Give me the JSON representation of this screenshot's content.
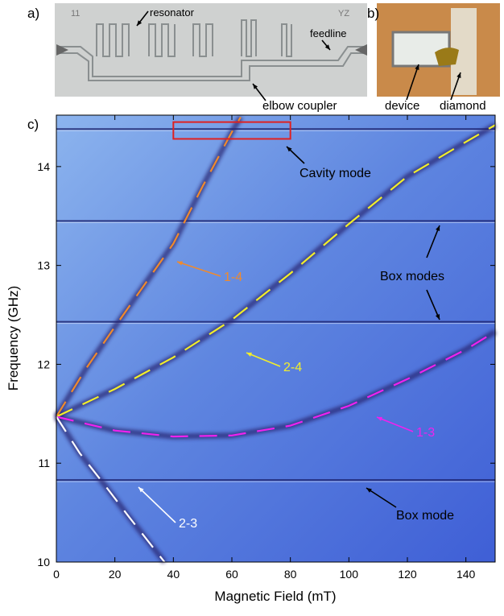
{
  "panels": {
    "a": {
      "label": "a)",
      "chip_markings": [
        "11",
        "YZ"
      ],
      "annotations": [
        "resonator",
        "feedline",
        "elbow coupler"
      ]
    },
    "b": {
      "label": "b)",
      "annotations": [
        "device",
        "diamond"
      ]
    }
  },
  "chart_data": {
    "type": "line",
    "panel_label": "c)",
    "x_label": "Magnetic Field (mT)",
    "y_label": "Frequency (GHz)",
    "xlim": [
      0,
      150
    ],
    "ylim": [
      10,
      14.52
    ],
    "xticks": [
      0,
      20,
      40,
      60,
      80,
      100,
      120,
      140
    ],
    "yticks": [
      10,
      11,
      12,
      13,
      14
    ],
    "series": [
      {
        "name": "1-4",
        "color": "#f08a2c",
        "x": [
          0,
          10,
          20,
          30,
          40,
          50,
          60,
          63
        ],
        "values": [
          11.47,
          11.95,
          12.38,
          12.8,
          13.22,
          13.8,
          14.35,
          14.5
        ]
      },
      {
        "name": "2-4",
        "color": "#f2ee2a",
        "x": [
          0,
          20,
          40,
          60,
          80,
          100,
          120,
          140,
          150
        ],
        "values": [
          11.47,
          11.75,
          12.07,
          12.45,
          12.92,
          13.42,
          13.9,
          14.25,
          14.42
        ]
      },
      {
        "name": "1-3",
        "color": "#ee22ee",
        "x": [
          0,
          20,
          40,
          60,
          80,
          100,
          120,
          140,
          150
        ],
        "values": [
          11.47,
          11.33,
          11.27,
          11.28,
          11.38,
          11.58,
          11.85,
          12.15,
          12.33
        ]
      },
      {
        "name": "2-3",
        "color": "#ffffff",
        "x": [
          0,
          8,
          16,
          25,
          37
        ],
        "values": [
          11.47,
          11.1,
          10.8,
          10.45,
          10.0
        ]
      }
    ],
    "modes": [
      14.38,
      13.45,
      12.43,
      10.83
    ],
    "highlight_box": {
      "x": [
        40,
        80
      ],
      "y": [
        14.28,
        14.45
      ],
      "color": "#e02020"
    },
    "annotations": [
      "Cavity mode",
      "Box modes",
      "Box mode"
    ]
  }
}
